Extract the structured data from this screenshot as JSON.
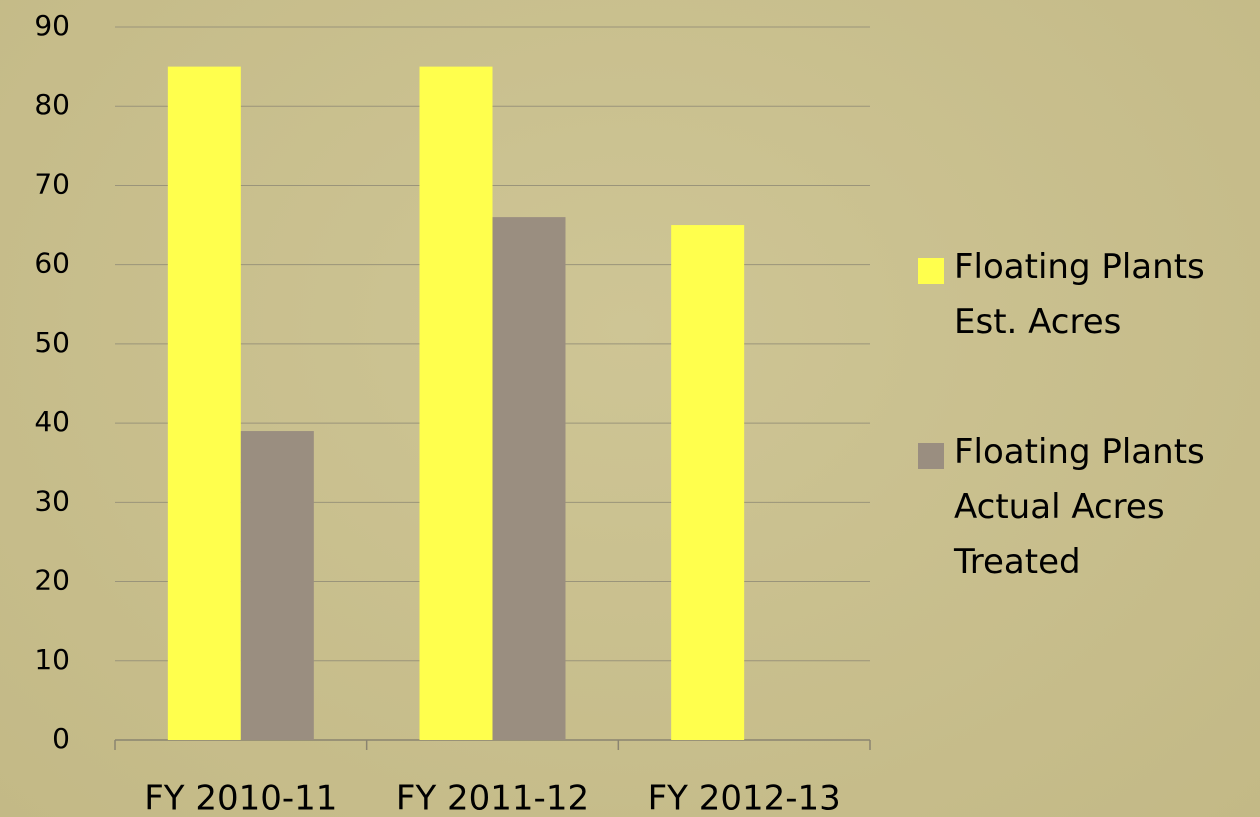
{
  "chart_data": {
    "type": "bar",
    "categories": [
      "FY 2010-11",
      "FY 2011-12",
      "FY 2012-13"
    ],
    "series": [
      {
        "name": "Floating Plants Est. Acres",
        "color": "#ffff4d",
        "values": [
          85,
          85,
          65
        ]
      },
      {
        "name": "Floating Plants Actual Acres Treated",
        "color": "#9a8e80",
        "values": [
          39,
          66,
          null
        ]
      }
    ],
    "ylim": [
      0,
      90
    ],
    "yticks": [
      0,
      10,
      20,
      30,
      40,
      50,
      60,
      70,
      80,
      90
    ],
    "grid": true,
    "legend": "right"
  }
}
